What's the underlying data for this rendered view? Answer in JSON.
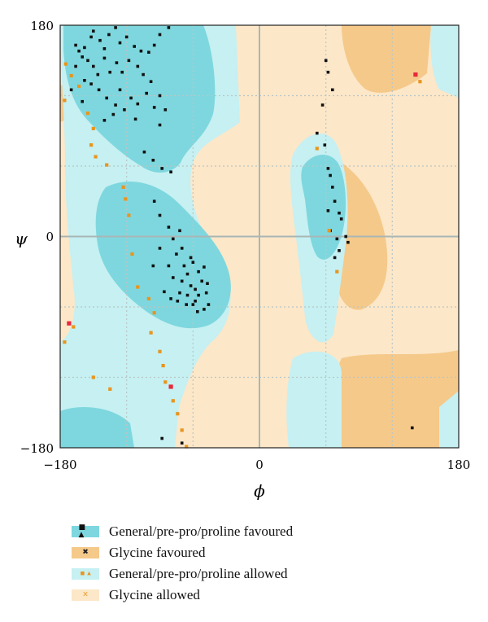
{
  "chart_data": {
    "type": "scatter",
    "title": "",
    "xlabel": "ϕ",
    "ylabel": "ψ",
    "xlim": [
      -180,
      180
    ],
    "ylim": [
      -180,
      180
    ],
    "x_tick_labels": [
      "−180",
      "0",
      "180"
    ],
    "y_tick_labels": [
      "180",
      "0",
      "−180"
    ],
    "grid": true,
    "legend_position": "bottom",
    "colors": {
      "general_favoured": "#7ED7DE",
      "general_allowed": "#C6F0F2",
      "glycine_favoured": "#F5C98A",
      "glycine_allowed": "#FCE7C8",
      "general_point": "#111111",
      "glycine_point": "#E8951E",
      "outlier_point": "#E8283C"
    },
    "legend": [
      {
        "label": "General/pre-pro/proline favoured",
        "swatch": "#7ED7DE",
        "marker": "■ ▲"
      },
      {
        "label": "Glycine favoured",
        "swatch": "#F5C98A",
        "marker": "✖"
      },
      {
        "label": "General/pre-pro/proline allowed",
        "swatch": "#C6F0F2",
        "marker": "▪ ▴"
      },
      {
        "label": "Glycine allowed",
        "swatch": "#FCE7C8",
        "marker": "×"
      }
    ],
    "series": [
      {
        "name": "General/pre-pro/proline",
        "points": [
          [
            -166,
            163
          ],
          [
            -163,
            158
          ],
          [
            -158,
            161
          ],
          [
            -160,
            153
          ],
          [
            -152,
            170
          ],
          [
            -150,
            175
          ],
          [
            -144,
            167
          ],
          [
            -140,
            160
          ],
          [
            -136,
            172
          ],
          [
            -130,
            178
          ],
          [
            -126,
            165
          ],
          [
            -120,
            170
          ],
          [
            -113,
            162
          ],
          [
            -107,
            158
          ],
          [
            -100,
            157
          ],
          [
            -95,
            163
          ],
          [
            -90,
            172
          ],
          [
            -82,
            178
          ],
          [
            -155,
            150
          ],
          [
            -150,
            145
          ],
          [
            -146,
            138
          ],
          [
            -140,
            152
          ],
          [
            -135,
            140
          ],
          [
            -129,
            148
          ],
          [
            -124,
            140
          ],
          [
            -118,
            150
          ],
          [
            -110,
            145
          ],
          [
            -105,
            138
          ],
          [
            -98,
            132
          ],
          [
            -90,
            120
          ],
          [
            -85,
            108
          ],
          [
            -158,
            133
          ],
          [
            -152,
            130
          ],
          [
            -145,
            125
          ],
          [
            -138,
            118
          ],
          [
            -130,
            112
          ],
          [
            -126,
            125
          ],
          [
            -116,
            118
          ],
          [
            -110,
            113
          ],
          [
            -102,
            122
          ],
          [
            -95,
            110
          ],
          [
            -90,
            95
          ],
          [
            -140,
            99
          ],
          [
            -132,
            104
          ],
          [
            -122,
            108
          ],
          [
            -112,
            100
          ],
          [
            -104,
            72
          ],
          [
            -96,
            65
          ],
          [
            -88,
            58
          ],
          [
            -80,
            55
          ],
          [
            -160,
            115
          ],
          [
            -166,
            145
          ],
          [
            -170,
            125
          ],
          [
            -95,
            30
          ],
          [
            -90,
            18
          ],
          [
            -82,
            8
          ],
          [
            -78,
            -2
          ],
          [
            -72,
            5
          ],
          [
            -75,
            -15
          ],
          [
            -82,
            -25
          ],
          [
            -78,
            -35
          ],
          [
            -70,
            -38
          ],
          [
            -65,
            -32
          ],
          [
            -62,
            -42
          ],
          [
            -58,
            -45
          ],
          [
            -55,
            -50
          ],
          [
            -52,
            -38
          ],
          [
            -48,
            -48
          ],
          [
            -46,
            -58
          ],
          [
            -50,
            -62
          ],
          [
            -58,
            -55
          ],
          [
            -65,
            -50
          ],
          [
            -72,
            -48
          ],
          [
            -68,
            -25
          ],
          [
            -60,
            -22
          ],
          [
            -55,
            -30
          ],
          [
            -50,
            -26
          ],
          [
            -47,
            -40
          ],
          [
            -56,
            -64
          ],
          [
            -60,
            -58
          ],
          [
            -66,
            -58
          ],
          [
            -74,
            -55
          ],
          [
            -80,
            -53
          ],
          [
            -86,
            -47
          ],
          [
            -90,
            -10
          ],
          [
            -96,
            -25
          ],
          [
            -70,
            -10
          ],
          [
            -62,
            -18
          ],
          [
            62,
            140
          ],
          [
            66,
            125
          ],
          [
            60,
            150
          ],
          [
            57,
            112
          ],
          [
            52,
            88
          ],
          [
            59,
            78
          ],
          [
            62,
            58
          ],
          [
            64,
            52
          ],
          [
            66,
            42
          ],
          [
            68,
            30
          ],
          [
            72,
            20
          ],
          [
            74,
            15
          ],
          [
            62,
            22
          ],
          [
            64,
            5
          ],
          [
            70,
            -2
          ],
          [
            72,
            -12
          ],
          [
            68,
            -18
          ],
          [
            78,
            0
          ],
          [
            80,
            -5
          ],
          [
            138,
            -163
          ],
          [
            -88,
            -172
          ],
          [
            -70,
            -176
          ]
        ]
      },
      {
        "name": "Glycine",
        "points": [
          [
            -175,
            147
          ],
          [
            -176,
            116
          ],
          [
            -170,
            137
          ],
          [
            -163,
            128
          ],
          [
            -155,
            105
          ],
          [
            -150,
            92
          ],
          [
            -152,
            78
          ],
          [
            -148,
            68
          ],
          [
            -138,
            61
          ],
          [
            -123,
            42
          ],
          [
            -121,
            32
          ],
          [
            -118,
            18
          ],
          [
            -115,
            -15
          ],
          [
            -110,
            -43
          ],
          [
            -100,
            -53
          ],
          [
            -98,
            -82
          ],
          [
            -95,
            -65
          ],
          [
            -90,
            -98
          ],
          [
            -87,
            -110
          ],
          [
            -85,
            -124
          ],
          [
            -78,
            -140
          ],
          [
            -74,
            -151
          ],
          [
            -70,
            -165
          ],
          [
            -66,
            -179
          ],
          [
            -150,
            -120
          ],
          [
            -135,
            -130
          ],
          [
            -168,
            -77
          ],
          [
            52,
            75
          ],
          [
            63,
            5
          ],
          [
            145,
            132
          ],
          [
            70,
            -30
          ],
          [
            -176,
            -90
          ]
        ]
      },
      {
        "name": "Outliers",
        "points": [
          [
            -172,
            -74
          ],
          [
            -80,
            -128
          ],
          [
            141,
            138
          ]
        ]
      }
    ]
  }
}
